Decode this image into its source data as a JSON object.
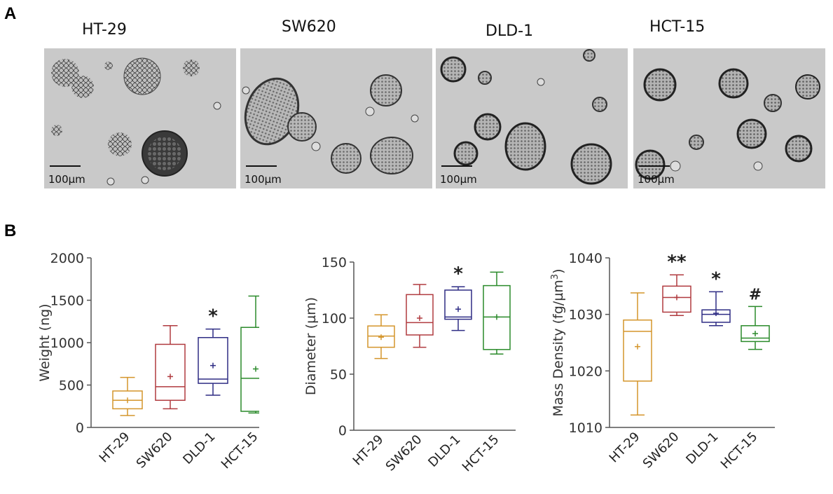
{
  "panels": {
    "a": "A",
    "b": "B"
  },
  "micrographs": [
    {
      "name": "HT-29",
      "scale": "100µm"
    },
    {
      "name": "SW620",
      "scale": "100µm"
    },
    {
      "name": "DLD-1",
      "scale": "100µm"
    },
    {
      "name": "HCT-15",
      "scale": "100µm"
    }
  ],
  "colors": {
    "HT-29": "#d4952b",
    "SW620": "#b03a3f",
    "DLD-1": "#2e2c84",
    "HCT-15": "#2a8a2a"
  },
  "chart_data": [
    {
      "type": "box",
      "categories": [
        "HT-29",
        "SW620",
        "DLD-1",
        "HCT-15"
      ],
      "ylabel": "Weight (ng)",
      "ylim": [
        0,
        2000
      ],
      "yticks": [
        0,
        500,
        1000,
        1500,
        2000
      ],
      "boxes": [
        {
          "min": 140,
          "q1": 220,
          "median": 320,
          "q3": 430,
          "max": 590,
          "mean": 320,
          "annotation": ""
        },
        {
          "min": 220,
          "q1": 320,
          "median": 480,
          "q3": 980,
          "max": 1200,
          "mean": 600,
          "annotation": ""
        },
        {
          "min": 380,
          "q1": 520,
          "median": 570,
          "q3": 1060,
          "max": 1160,
          "mean": 730,
          "annotation": "*"
        },
        {
          "min": 170,
          "q1": 190,
          "median": 580,
          "q3": 1180,
          "max": 1550,
          "mean": 690,
          "annotation": ""
        }
      ]
    },
    {
      "type": "box",
      "categories": [
        "HT-29",
        "SW620",
        "DLD-1",
        "HCT-15"
      ],
      "ylabel": "Diameter (µm)",
      "ylim": [
        0,
        150
      ],
      "yticks": [
        0,
        50,
        100,
        150
      ],
      "boxes": [
        {
          "min": 64,
          "q1": 74,
          "median": 84,
          "q3": 93,
          "max": 103,
          "mean": 83,
          "annotation": ""
        },
        {
          "min": 74,
          "q1": 85,
          "median": 96,
          "q3": 121,
          "max": 130,
          "mean": 100,
          "annotation": ""
        },
        {
          "min": 89,
          "q1": 99,
          "median": 101,
          "q3": 125,
          "max": 128,
          "mean": 108,
          "annotation": "*"
        },
        {
          "min": 68,
          "q1": 72,
          "median": 101,
          "q3": 129,
          "max": 141,
          "mean": 101,
          "annotation": ""
        }
      ]
    },
    {
      "type": "box",
      "categories": [
        "HT-29",
        "SW620",
        "DLD-1",
        "HCT-15"
      ],
      "ylabel": "Mass Density (fg/µm",
      "ylabel_sup": "3",
      "ylabel_end": ")",
      "ylim": [
        1010,
        1040
      ],
      "yticks": [
        1010,
        1020,
        1030,
        1040
      ],
      "boxes": [
        {
          "min": 1012.2,
          "q1": 1018.2,
          "median": 1027.0,
          "q3": 1029.0,
          "max": 1033.8,
          "mean": 1024.3,
          "annotation": ""
        },
        {
          "min": 1029.8,
          "q1": 1030.4,
          "median": 1033.0,
          "q3": 1035.0,
          "max": 1037.0,
          "mean": 1033.0,
          "annotation": "**"
        },
        {
          "min": 1028.0,
          "q1": 1028.6,
          "median": 1030.0,
          "q3": 1030.8,
          "max": 1034.0,
          "mean": 1030.2,
          "annotation": "*"
        },
        {
          "min": 1023.8,
          "q1": 1025.2,
          "median": 1025.8,
          "q3": 1028.0,
          "max": 1031.4,
          "mean": 1026.6,
          "annotation": "#"
        }
      ]
    }
  ]
}
